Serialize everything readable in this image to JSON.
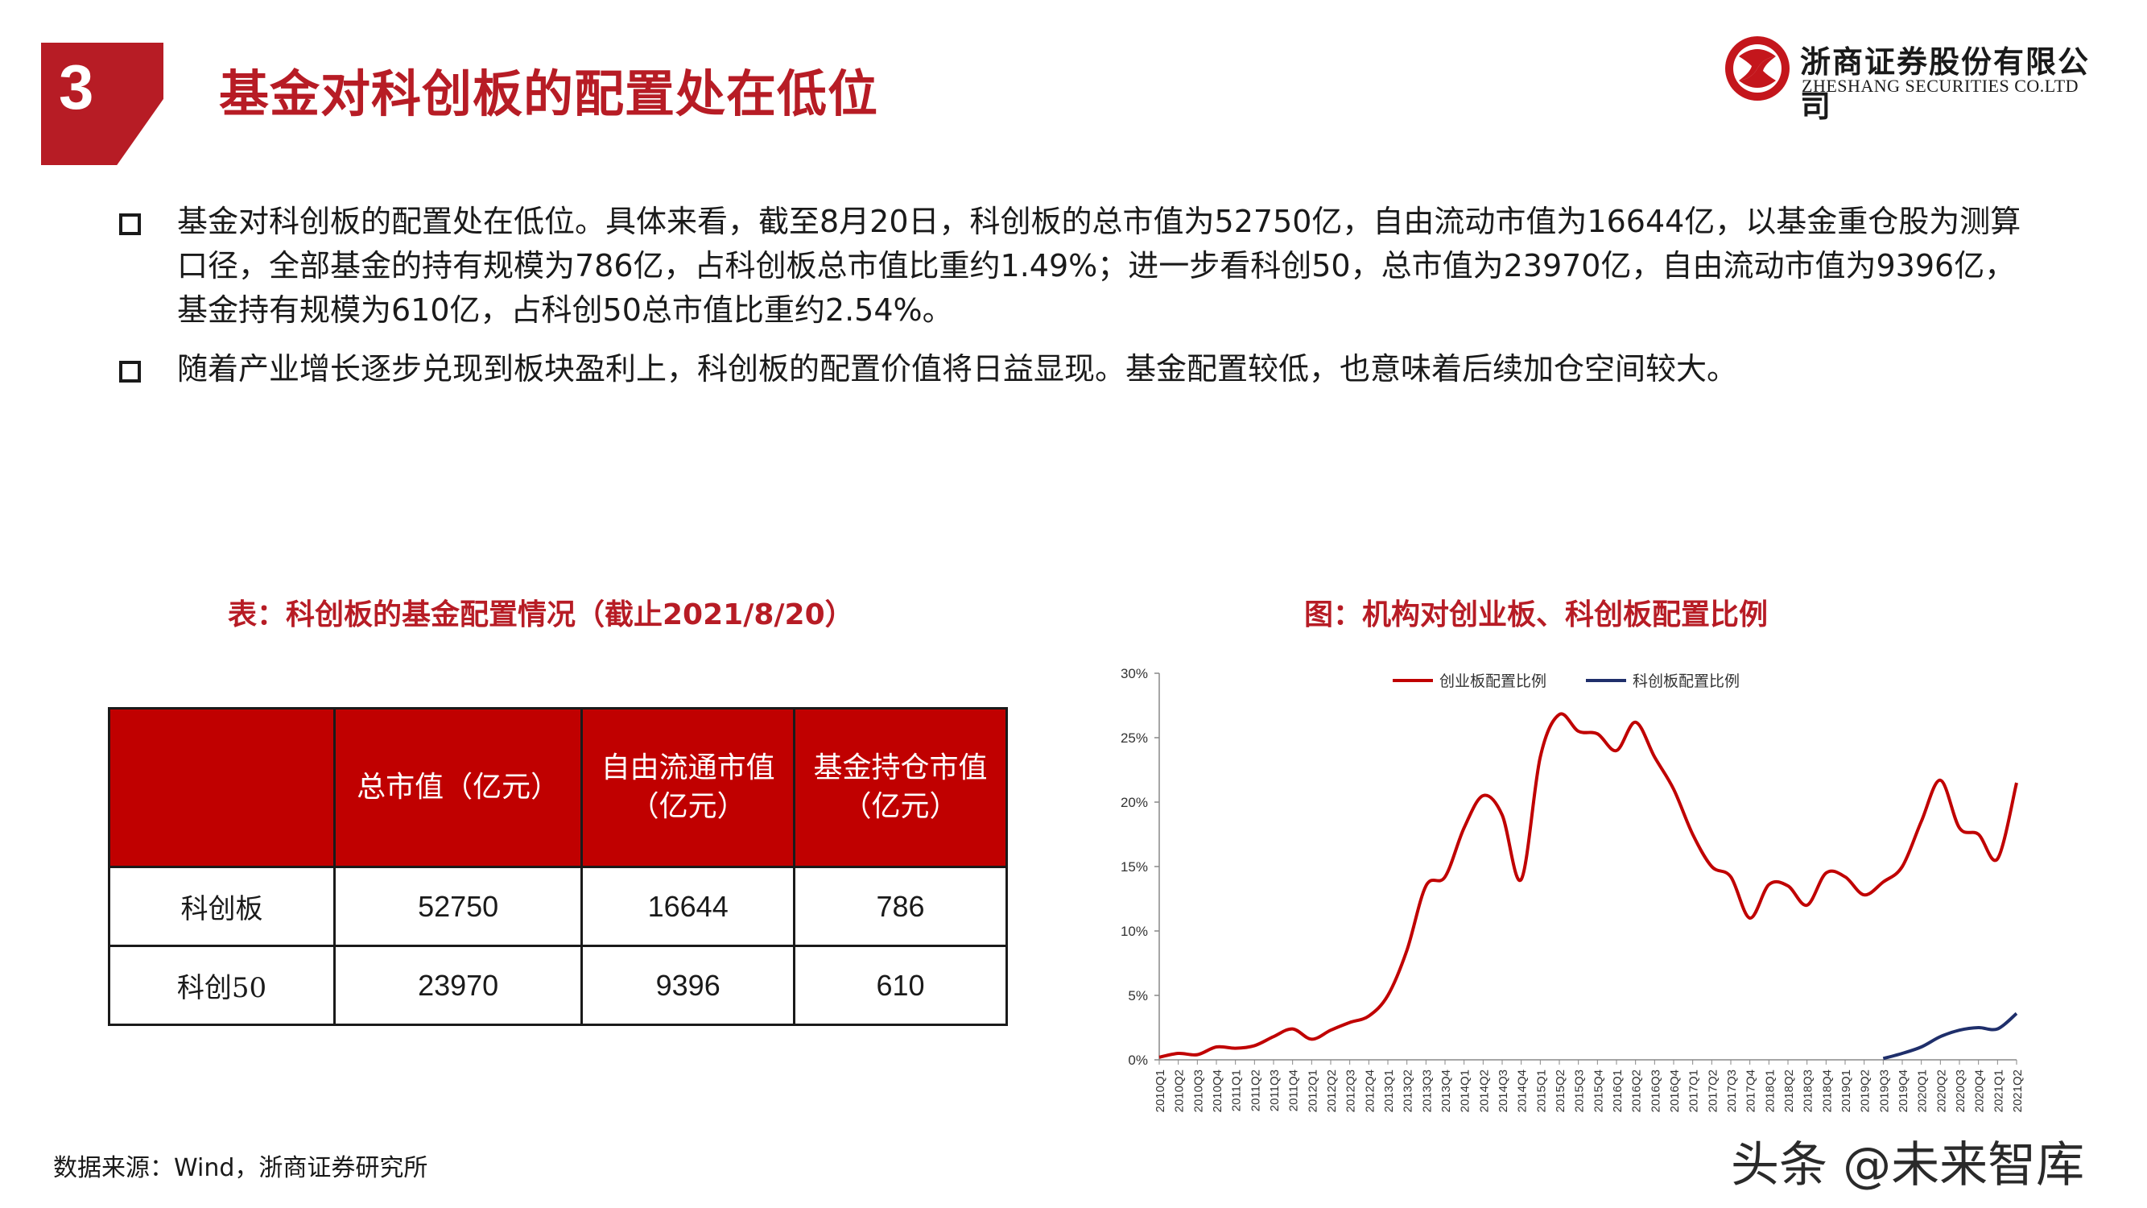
{
  "header": {
    "section_number": "3",
    "title": "基金对科创板的配置处在低位",
    "logo_cn": "浙商证券股份有限公司",
    "logo_en": "ZHESHANG SECURITIES CO.LTD",
    "brand_color": "#b71c25"
  },
  "bullets": [
    "基金对科创板的配置处在低位。具体来看，截至8月20日，科创板的总市值为52750亿，自由流动市值为16644亿，以基金重仓股为测算口径，全部基金的持有规模为786亿，占科创板总市值比重约1.49%；进一步看科创50，总市值为23970亿，自由流动市值为9396亿，基金持有规模为610亿，占科创50总市值比重约2.54%。",
    "随着产业增长逐步兑现到板块盈利上，科创板的配置价值将日益显现。基金配置较低，也意味着后续加仓空间较大。"
  ],
  "table": {
    "caption": "表：科创板的基金配置情况（截止2021/8/20）",
    "headers": [
      "",
      "总市值（亿元）",
      "自由流通市值（亿元）",
      "基金持仓市值（亿元）"
    ],
    "header_lines": [
      [
        ""
      ],
      [
        "总市值（亿元）"
      ],
      [
        "自由流通市值",
        "（亿元）"
      ],
      [
        "基金持仓市值",
        "（亿元）"
      ]
    ],
    "rows": [
      [
        "科创板",
        "52750",
        "16644",
        "786"
      ],
      [
        "科创50",
        "23970",
        "9396",
        "610"
      ]
    ]
  },
  "chart_caption": "图：机构对创业板、科创板配置比例",
  "chart_data": {
    "type": "line",
    "title": "",
    "xlabel": "",
    "ylabel": "",
    "ylim": [
      0,
      30
    ],
    "y_ticks": [
      "0%",
      "5%",
      "10%",
      "15%",
      "20%",
      "25%",
      "30%"
    ],
    "legend_position": "top",
    "x": [
      "2010Q1",
      "2010Q2",
      "2010Q3",
      "2010Q4",
      "2011Q1",
      "2011Q2",
      "2011Q3",
      "2011Q4",
      "2012Q1",
      "2012Q2",
      "2012Q3",
      "2012Q4",
      "2013Q1",
      "2013Q2",
      "2013Q3",
      "2013Q4",
      "2014Q1",
      "2014Q2",
      "2014Q3",
      "2014Q4",
      "2015Q1",
      "2015Q2",
      "2015Q3",
      "2015Q4",
      "2016Q1",
      "2016Q2",
      "2016Q3",
      "2016Q4",
      "2017Q1",
      "2017Q2",
      "2017Q3",
      "2017Q4",
      "2018Q1",
      "2018Q2",
      "2018Q3",
      "2018Q4",
      "2019Q1",
      "2019Q2",
      "2019Q3",
      "2019Q4",
      "2020Q1",
      "2020Q2",
      "2020Q3",
      "2020Q4",
      "2021Q1",
      "2021Q2"
    ],
    "x_tick_labels": [
      "2010Q1",
      "2010Q3",
      "2011Q1",
      "2011Q3",
      "2012Q1",
      "2012Q3",
      "2013Q1",
      "2013Q3",
      "2014Q1",
      "2014Q3",
      "2015Q1",
      "2015Q3",
      "2016Q1",
      "2016Q3",
      "2017Q1",
      "2017Q3",
      "2018Q1",
      "2018Q3",
      "2019Q1",
      "2019Q3",
      "2020Q1",
      "2020Q3",
      "2021Q1"
    ],
    "x_tick_text": [
      "2010Q1",
      "2010Q2",
      "2010Q3",
      "2010Q4",
      "2011Q1",
      "2011Q2",
      "2011Q3",
      "2011Q4",
      "2012Q1",
      "2012Q2",
      "2012Q3",
      "2012Q4",
      "2013Q1",
      "2013Q2",
      "2013Q3",
      "2013Q4",
      "2014Q1",
      "2014Q2",
      "2014Q3",
      "2014Q4",
      "2015Q1",
      "2015Q2",
      "2015Q3",
      "2015Q4",
      "2016Q1",
      "2016Q2",
      "2016Q3",
      "2016Q4",
      "2017Q1",
      "2017Q2",
      "2017Q3",
      "2017Q4",
      "2018Q1",
      "2018Q2",
      "2018Q3",
      "2018Q4",
      "2019Q1",
      "2019Q2",
      "2019Q3",
      "2019Q4",
      "2020Q1",
      "2020Q2",
      "2020Q3",
      "2020Q4",
      "2021Q1",
      "2021Q2"
    ],
    "series": [
      {
        "name": "创业板配置比例",
        "color": "#c00000",
        "values": [
          0.2,
          0.5,
          0.4,
          1.0,
          0.9,
          1.1,
          1.8,
          2.4,
          1.6,
          2.3,
          2.9,
          3.4,
          5.0,
          8.5,
          13.5,
          14.2,
          18.0,
          20.5,
          19.0,
          14.0,
          23.5,
          26.8,
          25.5,
          25.3,
          24.0,
          26.2,
          23.5,
          21.0,
          17.5,
          15.0,
          14.2,
          11.0,
          13.6,
          13.5,
          12.0,
          14.5,
          14.2,
          12.8,
          13.8,
          15.0,
          18.5,
          21.7,
          18.0,
          17.5,
          15.6,
          21.5
        ]
      },
      {
        "name": "科创板配置比例",
        "color": "#1f2f6b",
        "values": [
          null,
          null,
          null,
          null,
          null,
          null,
          null,
          null,
          null,
          null,
          null,
          null,
          null,
          null,
          null,
          null,
          null,
          null,
          null,
          null,
          null,
          null,
          null,
          null,
          null,
          null,
          null,
          null,
          null,
          null,
          null,
          null,
          null,
          null,
          null,
          null,
          null,
          null,
          0.1,
          0.5,
          1.0,
          1.8,
          2.3,
          2.5,
          2.4,
          3.6
        ]
      }
    ]
  },
  "source": "数据来源：Wind，浙商证券研究所",
  "watermark": "头条 @未来智库"
}
